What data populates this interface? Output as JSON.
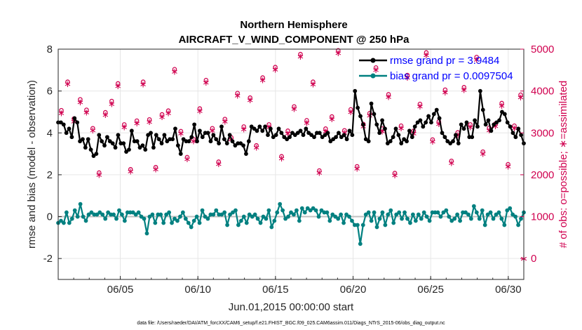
{
  "chart_data": {
    "type": "line",
    "title": "Northern Hemisphere",
    "subtitle": "AIRCRAFT_V_WIND_COMPONENT @ 250 hPa",
    "xlabel": "Jun.01,2015 00:00:00 start",
    "ylabel": "rmse and bias (model - observation)",
    "y2label": "# of obs: o=possible; ∗=assimilated",
    "footnote": "data file: /Users/raeder/DAI/ATM_forcXX/CAM6_setup/f.e21.FHIST_BGC.f09_025.CAM6assim.011/Diags_NTrS_2015-06/obs_diag_output.nc",
    "x_ticks": [
      "06/05",
      "06/10",
      "06/15",
      "06/20",
      "06/25",
      "06/30"
    ],
    "x_tick_days": [
      5,
      10,
      15,
      20,
      25,
      30
    ],
    "xlim_days": [
      1,
      31
    ],
    "ylim": [
      -3,
      8
    ],
    "y_ticks": [
      "-2",
      "0",
      "2",
      "4",
      "6",
      "8"
    ],
    "y2lim": [
      -500,
      5000
    ],
    "y2_ticks": [
      "0",
      "1000",
      "2000",
      "3000",
      "4000",
      "5000"
    ],
    "grid": true,
    "legend_position": "top-right",
    "colors": {
      "rmse": "#000000",
      "bias": "#008080",
      "obs": "#d0004f",
      "zero": "#c0c0c0"
    },
    "series": [
      {
        "name": "rmse grand pr = 3.9484",
        "axis": "left",
        "color": "#000000",
        "values": [
          4.5,
          4.5,
          4.4,
          4.0,
          4.2,
          3.8,
          4.7,
          4.5,
          3.6,
          3.7,
          3.3,
          3.7,
          3.2,
          2.9,
          3.0,
          3.9,
          3.6,
          3.4,
          3.8,
          3.6,
          3.5,
          3.3,
          3.9,
          3.5,
          3.5,
          3.1,
          3.2,
          4.1,
          3.6,
          3.6,
          3.3,
          3.4,
          3.2,
          3.9,
          4.0,
          3.3,
          3.9,
          3.7,
          3.5,
          3.9,
          3.6,
          3.7,
          3.7,
          4.2,
          3.4,
          3.0,
          3.7,
          3.6,
          3.6,
          3.8,
          4.4,
          3.6,
          4.1,
          3.8,
          4.0,
          4.0,
          3.6,
          3.9,
          3.7,
          3.5,
          4.3,
          3.7,
          3.5,
          3.9,
          3.6,
          3.4,
          3.5,
          3.5,
          3.4,
          3.0,
          3.6,
          4.3,
          4.2,
          4.1,
          4.3,
          4.1,
          4.3,
          3.9,
          4.2,
          3.8,
          3.9,
          4.2,
          4.0,
          3.8,
          3.7,
          3.8,
          4.0,
          3.9,
          4.0,
          4.1,
          3.9,
          4.2,
          4.0,
          3.9,
          3.8,
          4.0,
          4.0,
          3.8,
          3.9,
          4.0,
          3.6,
          3.7,
          3.8,
          4.0,
          3.8,
          3.9,
          3.7,
          4.1,
          3.9,
          6.0,
          5.2,
          4.8,
          4.4,
          3.7,
          3.6,
          5.4,
          4.9,
          4.4,
          4.0,
          4.6,
          4.2,
          3.5,
          3.6,
          3.8,
          4.2,
          3.9,
          3.5,
          3.7,
          3.6,
          4.1,
          3.8,
          4.3,
          4.5,
          4.6,
          4.3,
          4.5,
          4.8,
          4.5,
          4.9,
          5.1,
          4.7,
          4.0,
          3.8,
          3.6,
          3.5,
          3.6,
          3.9,
          3.5,
          4.4,
          4.2,
          4.5,
          3.8,
          3.8,
          4.6,
          4.3,
          6.0,
          5.1,
          4.4,
          4.6,
          4.1,
          4.4,
          4.5,
          4.6,
          5.0,
          4.9,
          4.5,
          4.3,
          4.0,
          3.8,
          4.2,
          3.9,
          3.5
        ]
      },
      {
        "name": "bias grand pr = 0.0097504",
        "axis": "left",
        "color": "#008080",
        "values": [
          -0.3,
          -0.2,
          -0.3,
          0.2,
          -0.3,
          -0.1,
          0.3,
          0.0,
          0.6,
          0.0,
          -0.2,
          0.1,
          0.2,
          0.1,
          0.1,
          0.2,
          0.1,
          -0.1,
          0.2,
          0.1,
          0.1,
          -0.1,
          0.3,
          0.1,
          -0.2,
          0.2,
          0.2,
          0.2,
          0.1,
          0.2,
          0.0,
          -0.1,
          -0.8,
          0.0,
          0.1,
          -0.3,
          0.1,
          0.1,
          -0.3,
          0.1,
          0.2,
          -0.3,
          -0.1,
          -0.2,
          0.0,
          0.2,
          -0.1,
          -0.3,
          -0.5,
          -0.2,
          0.0,
          -0.3,
          0.3,
          0.0,
          -0.1,
          0.1,
          0.1,
          0.3,
          0.1,
          0.1,
          0.2,
          -0.4,
          0.1,
          0.2,
          0.3,
          -0.4,
          -0.2,
          0.0,
          -0.3,
          0.1,
          0.0,
          0.1,
          -0.1,
          -0.3,
          0.0,
          -0.1,
          0.3,
          -0.5,
          -0.2,
          0.2,
          0.6,
          0.3,
          -0.1,
          0.0,
          0.2,
          0.1,
          0.3,
          -0.2,
          0.4,
          0.2,
          0.4,
          0.3,
          0.4,
          0.3,
          0.0,
          0.3,
          0.2,
          0.2,
          -0.2,
          0.1,
          0.0,
          -0.1,
          0.1,
          -0.3,
          0.1,
          0.0,
          -0.2,
          -0.4,
          -0.4,
          -1.3,
          -0.4,
          0.1,
          0.2,
          -0.2,
          0.2,
          -0.5,
          -0.1,
          0.2,
          -0.4,
          0.1,
          0.3,
          -0.3,
          0.1,
          0.2,
          -0.1,
          0.2,
          -0.1,
          -0.3,
          0.1,
          -0.2,
          0.1,
          -0.1,
          0.2,
          0.0,
          -0.2,
          0.2,
          0.2,
          0.2,
          0.0,
          0.2,
          0.3,
          0.0,
          -0.2,
          -0.1,
          0.1,
          -0.2,
          0.2,
          0.2,
          0.1,
          -0.1,
          0.5,
          0.2,
          -0.1,
          0.3,
          -0.4,
          0.1,
          0.2,
          -0.1,
          0.1,
          0.2,
          -0.1,
          -0.4,
          0.3,
          0.4,
          0.1,
          0.0,
          -0.4,
          -0.1,
          0.2
        ]
      },
      {
        "name": "possible",
        "axis": "right",
        "color": "#d0004f",
        "marker": "o",
        "values": [
          3540,
          4220,
          3340,
          3800,
          3550,
          3110,
          2050,
          3490,
          3760,
          4180,
          3200,
          2130,
          3290,
          4220,
          3320,
          2180,
          3440,
          3530,
          4520,
          3040,
          2420,
          2850,
          3580,
          4260,
          3110,
          2310,
          3330,
          2890,
          3950,
          3150,
          3840,
          2700,
          4320,
          3200,
          4570,
          2440,
          3050,
          3630,
          4880,
          3300,
          4220,
          2100,
          3100,
          3390,
          4970,
          3060,
          3560,
          2200,
          3210,
          3470,
          4560,
          3100,
          3920,
          2040,
          3170,
          4380,
          3050,
          3690,
          4920,
          2840,
          3270,
          4030,
          2330,
          3010,
          4090,
          3200,
          4810,
          2550,
          3120,
          3220,
          3710,
          2250,
          3170,
          3910
        ]
      },
      {
        "name": "assimilated",
        "axis": "right",
        "color": "#d0004f",
        "marker": "*",
        "values": [
          3480,
          4180,
          3280,
          3740,
          3500,
          3070,
          2010,
          3440,
          3700,
          4130,
          3150,
          2090,
          3240,
          4170,
          3270,
          2140,
          3390,
          3480,
          4470,
          3000,
          2380,
          2810,
          3530,
          4210,
          3060,
          2270,
          3280,
          2850,
          3900,
          3100,
          3790,
          2660,
          4270,
          3150,
          4520,
          2400,
          3000,
          3580,
          4830,
          3250,
          4170,
          2060,
          3050,
          3340,
          4920,
          3010,
          3510,
          2160,
          3160,
          3420,
          4510,
          3050,
          3870,
          2000,
          3120,
          4330,
          3000,
          3640,
          4870,
          2800,
          3220,
          3980,
          2290,
          2960,
          4040,
          3150,
          4760,
          2510,
          3070,
          3170,
          3660,
          2210,
          3120,
          3860
        ]
      }
    ]
  }
}
